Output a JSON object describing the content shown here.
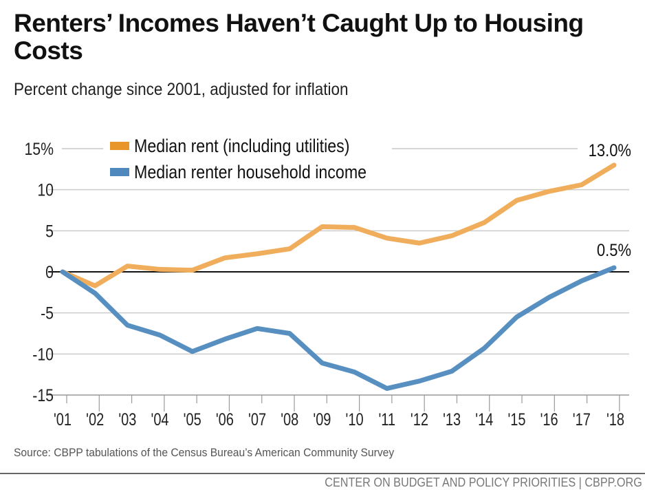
{
  "title": "Renters’ Incomes Haven’t Caught Up to Housing Costs",
  "subtitle": "Percent change since 2001, adjusted for inflation",
  "source": "Source: CBPP tabulations of the Census Bureau’s American Community Survey",
  "footer": "CENTER ON BUDGET AND POLICY PRIORITIES | CBPP.ORG",
  "chart_data": {
    "type": "line",
    "title": "",
    "xlabel": "",
    "ylabel": "",
    "ylim": [
      -15,
      15
    ],
    "yticks": [
      15,
      10,
      5,
      0,
      -5,
      -10,
      -15
    ],
    "ytick_labels": [
      "15%",
      "10",
      "5",
      "0",
      "-5",
      "-10",
      "-15"
    ],
    "grid": true,
    "legend_placement": "top-left",
    "categories": [
      "'01",
      "'02",
      "'03",
      "'04",
      "'05",
      "'06",
      "'07",
      "'08",
      "'09",
      "'10",
      "'11",
      "'12",
      "'13",
      "'14",
      "'15",
      "'16",
      "'17",
      "'18"
    ],
    "series": [
      {
        "name": "Median rent (including utilities)",
        "color": "#f0ad5c",
        "legend_color": "#e8962a",
        "values": [
          0,
          -1.7,
          0.7,
          0.3,
          0.2,
          1.7,
          2.2,
          2.8,
          5.5,
          5.4,
          4.1,
          3.5,
          4.4,
          6.0,
          8.7,
          9.8,
          10.6,
          13.0
        ],
        "end_label": "13.0%"
      },
      {
        "name": "Median renter household income",
        "color": "#5790c0",
        "legend_color": "#4f88bd",
        "values": [
          0,
          -2.6,
          -6.5,
          -7.7,
          -9.7,
          -8.2,
          -6.9,
          -7.5,
          -11.1,
          -12.2,
          -14.2,
          -13.3,
          -12.1,
          -9.3,
          -5.5,
          -3.1,
          -1.1,
          0.5
        ],
        "end_label": "0.5%"
      }
    ]
  }
}
